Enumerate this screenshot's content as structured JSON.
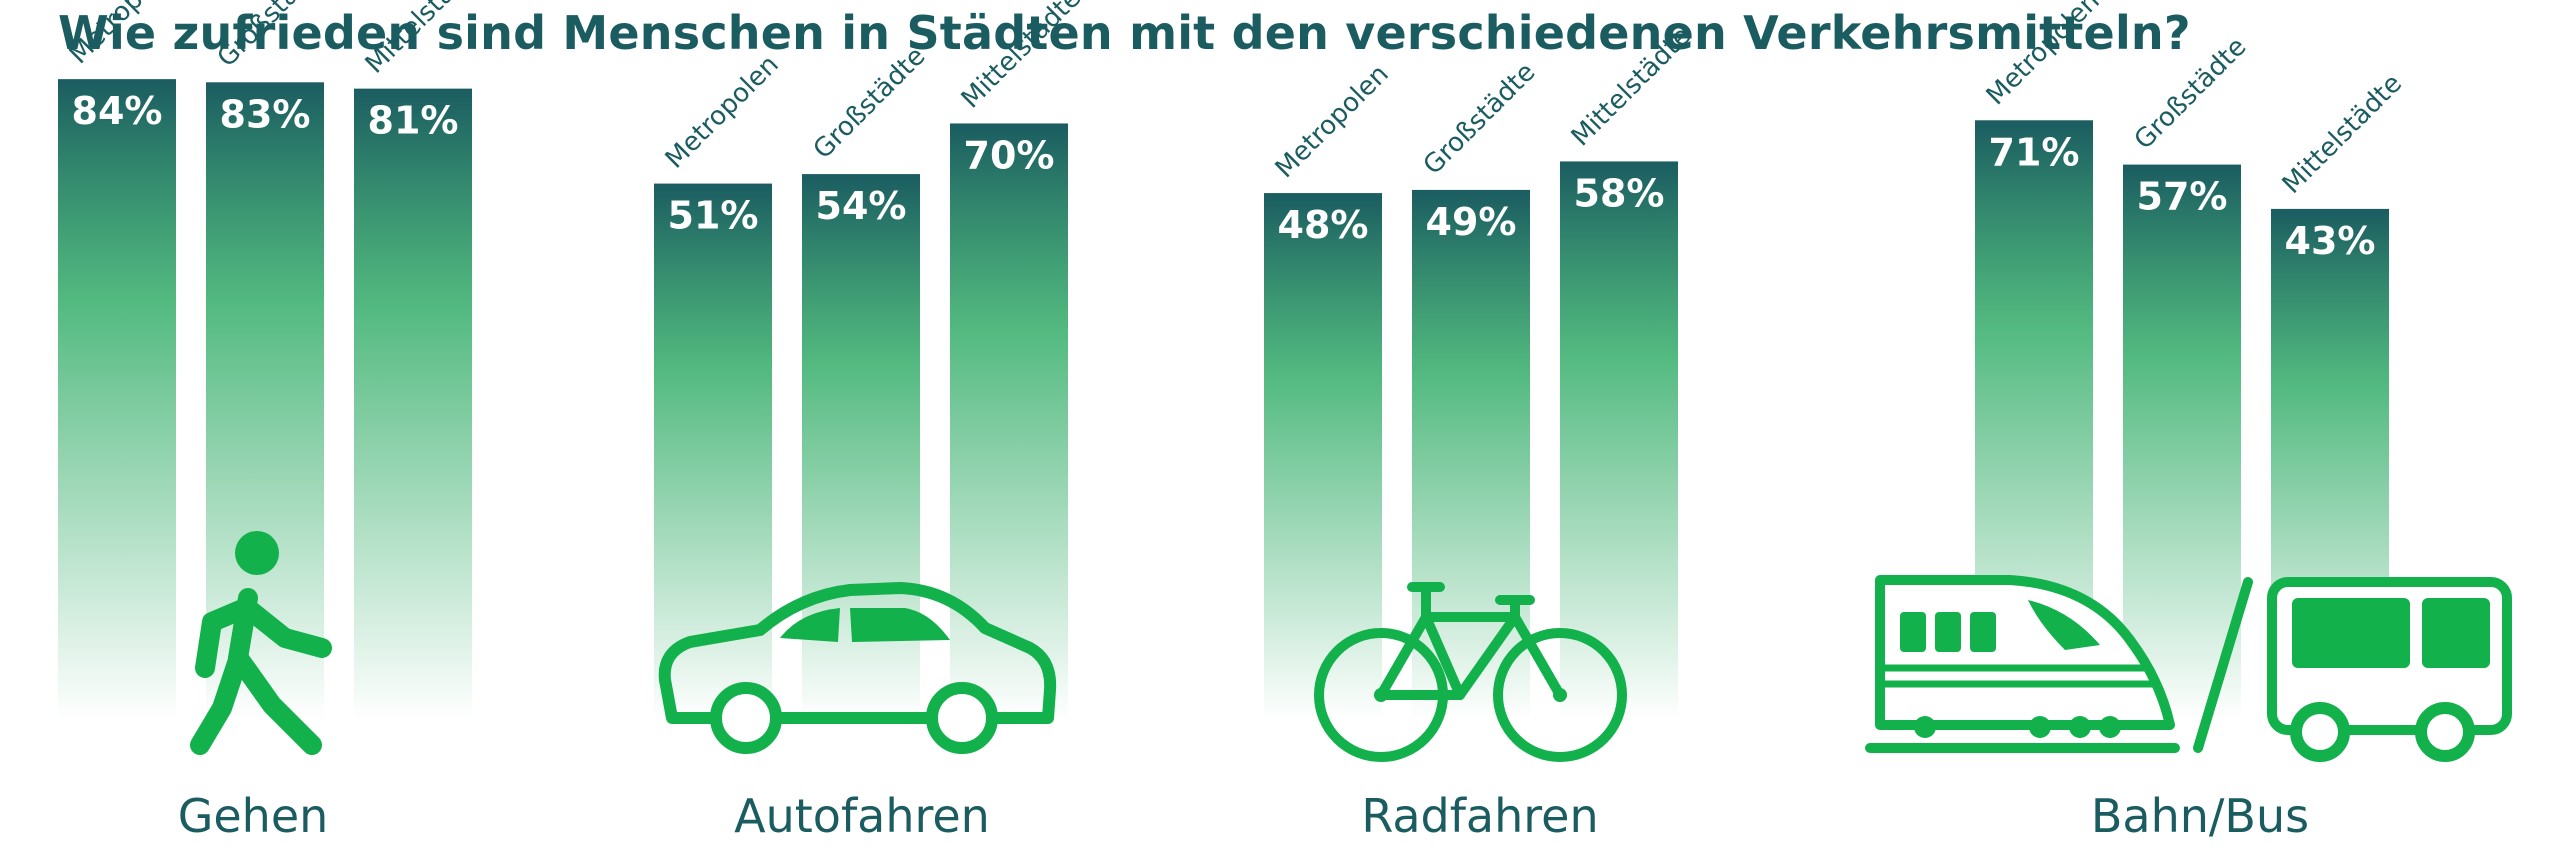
{
  "title": "Wie zufrieden sind Menschen in Städten mit den verschiedenen Verkehrsmitteln?",
  "colors": {
    "title": "#1b5c61",
    "bar_top": "#1b5c61",
    "bar_green": "#1aa356",
    "icon": "#12b14c",
    "label": "#ffffff"
  },
  "chart_data": [
    {
      "type": "bar",
      "group": "Gehen",
      "icon": "walking-person-icon",
      "categories": [
        "Metropolen",
        "Großstädte",
        "Mittelstädte"
      ],
      "values": [
        84,
        83,
        81
      ],
      "value_labels": [
        "84%",
        "83%",
        "81%"
      ]
    },
    {
      "type": "bar",
      "group": "Autofahren",
      "icon": "car-icon",
      "categories": [
        "Metropolen",
        "Großstädte",
        "Mittelstädte"
      ],
      "values": [
        51,
        54,
        70
      ],
      "value_labels": [
        "51%",
        "54%",
        "70%"
      ]
    },
    {
      "type": "bar",
      "group": "Radfahren",
      "icon": "bicycle-icon",
      "categories": [
        "Metropolen",
        "Großstädte",
        "Mittelstädte"
      ],
      "values": [
        48,
        49,
        58
      ],
      "value_labels": [
        "48%",
        "49%",
        "58%"
      ]
    },
    {
      "type": "bar",
      "group": "Bahn/Bus",
      "icon": "train-bus-icon",
      "categories": [
        "Metropolen",
        "Großstädte",
        "Mittelstädte"
      ],
      "values": [
        71,
        57,
        43
      ],
      "value_labels": [
        "71%",
        "57%",
        "43%"
      ]
    }
  ]
}
